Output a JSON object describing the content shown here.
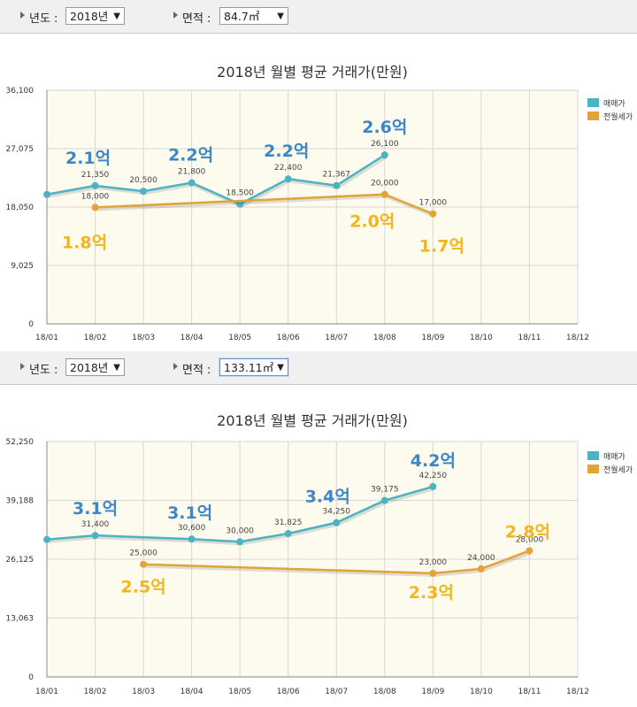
{
  "panels": [
    {
      "filters": {
        "year_label": "년도 :",
        "year_value": "2018년",
        "area_label": "면적 :",
        "area_value": "84.7㎡"
      },
      "chart_data": {
        "type": "line",
        "title": "2018년 월별 평균 거래가(만원)",
        "categories": [
          "18/01",
          "18/02",
          "18/03",
          "18/04",
          "18/05",
          "18/06",
          "18/07",
          "18/08",
          "18/09",
          "18/10",
          "18/11",
          "18/12"
        ],
        "y_ticks": [
          "36,100",
          "27,075",
          "18,050",
          "9,025",
          "0"
        ],
        "ylim": [
          0,
          36100
        ],
        "grid": true,
        "legend_position": "right",
        "series": [
          {
            "name": "매매가",
            "color": "#4bb3c2",
            "values": [
              20000,
              21350,
              20500,
              21800,
              18500,
              22400,
              21367,
              26100,
              null,
              null,
              null,
              null
            ],
            "labels": [
              null,
              "21,350",
              "20,500",
              "21,800",
              "18,500",
              "22,400",
              "21,367",
              "26,100",
              null,
              null,
              null,
              null
            ]
          },
          {
            "name": "전월세가",
            "color": "#e3a23a",
            "values": [
              null,
              18000,
              null,
              null,
              null,
              null,
              null,
              20000,
              17000,
              null,
              null,
              null
            ],
            "labels": [
              null,
              "18,000",
              null,
              null,
              null,
              null,
              null,
              "20,000",
              "17,000",
              null,
              null,
              null
            ]
          }
        ],
        "annotations": [
          {
            "text": "2.1억",
            "category": "18/02",
            "series": "매매가"
          },
          {
            "text": "2.2억",
            "category": "18/04",
            "series": "매매가"
          },
          {
            "text": "2.2억",
            "category": "18/06",
            "series": "매매가"
          },
          {
            "text": "2.6억",
            "category": "18/08",
            "series": "매매가"
          },
          {
            "text": "1.8억",
            "category": "18/02",
            "series": "전월세가"
          },
          {
            "text": "2.0억",
            "category": "18/08",
            "series": "전월세가"
          },
          {
            "text": "1.7억",
            "category": "18/09",
            "series": "전월세가"
          }
        ]
      }
    },
    {
      "filters": {
        "year_label": "년도 :",
        "year_value": "2018년",
        "area_label": "면적 :",
        "area_value": "133.11㎡"
      },
      "chart_data": {
        "type": "line",
        "title": "2018년 월별 평균 거래가(만원)",
        "categories": [
          "18/01",
          "18/02",
          "18/03",
          "18/04",
          "18/05",
          "18/06",
          "18/07",
          "18/08",
          "18/09",
          "18/10",
          "18/11",
          "18/12"
        ],
        "y_ticks": [
          "52,250",
          "39,188",
          "26,125",
          "13,063",
          "0"
        ],
        "ylim": [
          0,
          52250
        ],
        "grid": true,
        "legend_position": "right",
        "series": [
          {
            "name": "매매가",
            "color": "#4bb3c2",
            "values": [
              30500,
              31400,
              null,
              30600,
              30000,
              31825,
              34250,
              39175,
              42250,
              null,
              null,
              null
            ],
            "labels": [
              null,
              "31,400",
              null,
              "30,600",
              "30,000",
              "31,825",
              "34,250",
              "39,175",
              "42,250",
              null,
              null,
              null
            ]
          },
          {
            "name": "전월세가",
            "color": "#e3a23a",
            "values": [
              null,
              null,
              25000,
              null,
              null,
              null,
              null,
              null,
              23000,
              24000,
              28000,
              null
            ],
            "labels": [
              null,
              null,
              "25,000",
              null,
              null,
              null,
              null,
              null,
              "23,000",
              "24,000",
              "28,000",
              null
            ]
          }
        ],
        "annotations": [
          {
            "text": "3.1억",
            "category": "18/02",
            "series": "매매가"
          },
          {
            "text": "3.1억",
            "category": "18/04",
            "series": "매매가"
          },
          {
            "text": "3.4억",
            "category": "18/07",
            "series": "매매가"
          },
          {
            "text": "4.2억",
            "category": "18/09",
            "series": "매매가"
          },
          {
            "text": "2.5억",
            "category": "18/03",
            "series": "전월세가"
          },
          {
            "text": "2.3억",
            "category": "18/09",
            "series": "전월세가"
          },
          {
            "text": "2.8억",
            "category": "18/11",
            "series": "전월세가"
          }
        ]
      }
    }
  ]
}
